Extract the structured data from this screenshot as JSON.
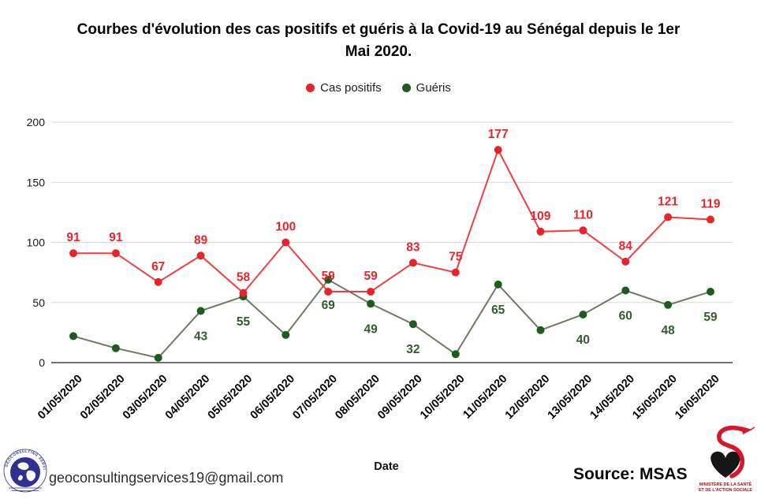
{
  "title": {
    "line1": "Courbes d'évolution des cas positifs et guéris à la Covid-19 au Sénégal depuis le 1er",
    "line2": "Mai 2020."
  },
  "legend": [
    {
      "label": "Cas positifs",
      "color": "#e8232a"
    },
    {
      "label": "Guéris",
      "color": "#1d5b21"
    }
  ],
  "chart_data": {
    "type": "line",
    "x": [
      "01/05/2020",
      "02/05/2020",
      "03/05/2020",
      "04/05/2020",
      "05/05/2020",
      "06/05/2020",
      "07/05/2020",
      "08/05/2020",
      "09/05/2020",
      "10/05/2020",
      "11/05/2020",
      "12/05/2020",
      "13/05/2020",
      "14/05/2020",
      "15/05/2020",
      "16/05/2020"
    ],
    "series": [
      {
        "name": "Cas positifs",
        "values": [
          91,
          91,
          67,
          89,
          58,
          100,
          59,
          59,
          83,
          75,
          177,
          109,
          110,
          84,
          121,
          119
        ],
        "show_labels": [
          true,
          true,
          true,
          true,
          true,
          true,
          true,
          true,
          true,
          true,
          true,
          true,
          true,
          true,
          true,
          true
        ],
        "point_color": "#e8232a",
        "line_color": "#f23d40",
        "label_color": "#e8252b",
        "label_position": "above"
      },
      {
        "name": "Guéris",
        "values": [
          22,
          12,
          4,
          43,
          55,
          23,
          69,
          49,
          32,
          7,
          65,
          27,
          40,
          60,
          48,
          59
        ],
        "show_labels": [
          false,
          false,
          false,
          true,
          true,
          false,
          true,
          true,
          true,
          false,
          true,
          false,
          true,
          true,
          true,
          true
        ],
        "point_color": "#1d5b21",
        "line_color": "#6e7b64",
        "label_color": "#2f5e2a",
        "label_position": "below"
      }
    ],
    "xlabel": "Date",
    "ylabel": "",
    "ylim": [
      0,
      200
    ],
    "yticks": [
      0,
      50,
      100,
      150,
      200
    ],
    "grid": "horizontal-only",
    "legend_position": "top"
  },
  "footer": {
    "email": "geoconsultingservices19@gmail.com",
    "source": "Source: MSAS"
  },
  "logos": {
    "geoconsulting": {
      "arc_text": "GEOCONSULTING SERVICES"
    },
    "msas": {
      "caption_line1": "MINISTÈRE DE LA SANTÉ",
      "caption_line2": "ET DE L'ACTION SOCIALE"
    }
  }
}
